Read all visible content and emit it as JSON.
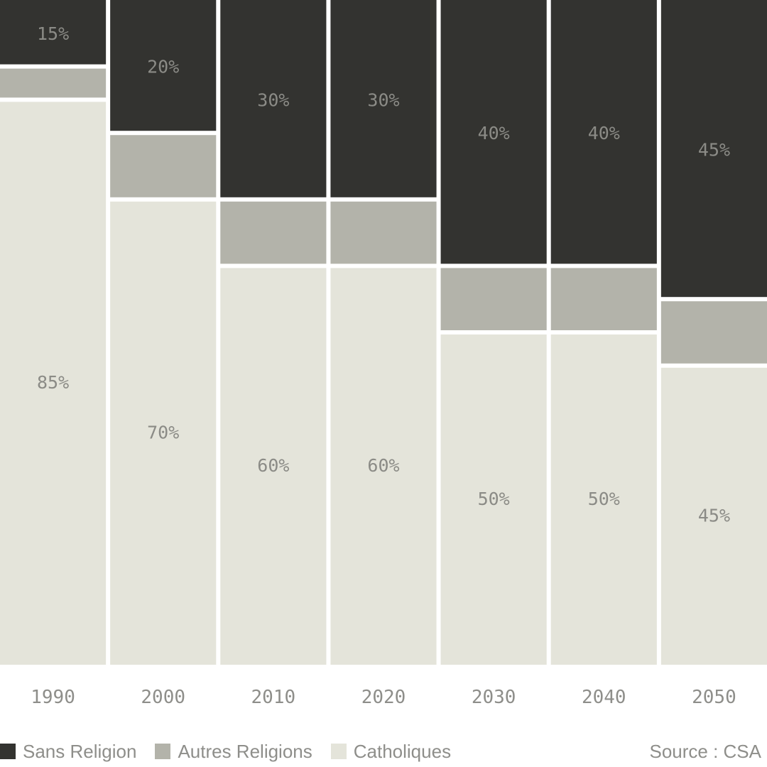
{
  "chart_data": {
    "type": "bar",
    "stacked": true,
    "categories": [
      "1990",
      "2000",
      "2010",
      "2020",
      "2030",
      "2040",
      "2050"
    ],
    "ylim": [
      0,
      100
    ],
    "series": [
      {
        "name": "Catholiques",
        "color": "#e4e4da",
        "values": [
          85,
          70,
          60,
          60,
          50,
          50,
          45
        ],
        "labels": [
          "85%",
          "70%",
          "60%",
          "60%",
          "50%",
          "50%",
          "45%"
        ]
      },
      {
        "name": "Autres Religions",
        "color": "#b3b3aa",
        "values": [
          5,
          10,
          10,
          10,
          10,
          10,
          10
        ],
        "labels": [
          "",
          "",
          "",
          "",
          "",
          "",
          ""
        ]
      },
      {
        "name": "Sans Religion",
        "color": "#333330",
        "values": [
          15,
          20,
          30,
          30,
          40,
          40,
          45
        ],
        "labels": [
          "15%",
          "20%",
          "30%",
          "30%",
          "40%",
          "40%",
          "45%"
        ]
      }
    ],
    "legend": [
      {
        "name": "Sans Religion",
        "color": "#333330"
      },
      {
        "name": "Autres Religions",
        "color": "#b3b3aa"
      },
      {
        "name": "Catholiques",
        "color": "#e4e4da"
      }
    ],
    "legend_position": "bottom-left",
    "grid": false
  },
  "source": {
    "label": "Source : CSA"
  }
}
